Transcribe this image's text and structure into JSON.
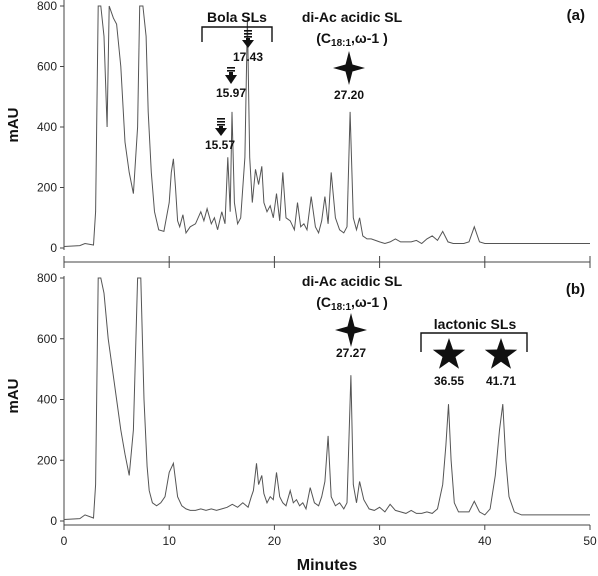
{
  "chart_data": [
    {
      "panel": "(a)",
      "type": "line",
      "xlabel": "",
      "ylabel": "mAU",
      "xlim": [
        0,
        50
      ],
      "ylim": [
        0,
        800
      ],
      "yticks": [
        0,
        200,
        400,
        600,
        800
      ],
      "xticks": [
        0,
        10,
        20,
        30,
        40,
        50
      ],
      "annotations": {
        "bracket_label": "Bola SLs",
        "group_label": "di-Ac acidic SL",
        "group_sub_pre": "(C",
        "group_sub_sub": "18:1",
        "group_sub_post": ",ω-1 )"
      },
      "peaks": [
        {
          "label": "15.57",
          "x": 15.57,
          "marker": "triple-arrow"
        },
        {
          "label": "15.97",
          "x": 15.97,
          "marker": "double-arrow"
        },
        {
          "label": "17.43",
          "x": 17.43,
          "marker": "triple-arrow"
        },
        {
          "label": "27.20",
          "x": 27.2,
          "marker": "four-point-star"
        }
      ],
      "series": [
        {
          "x": [
            0.0,
            1.5,
            2.0,
            2.8,
            3.0,
            3.25,
            3.5,
            3.8,
            4.1,
            4.3,
            4.5,
            4.7,
            5.0,
            5.4,
            5.8,
            6.2,
            6.6,
            7.0,
            7.2,
            7.5,
            7.8,
            8.0,
            8.3,
            8.6,
            9.0,
            9.5,
            10.0,
            10.2,
            10.4,
            10.6,
            10.8,
            11.0,
            11.3,
            11.6,
            12.0,
            12.5,
            13.0,
            13.3,
            13.6,
            14.0,
            14.3,
            14.6,
            15.0,
            15.3,
            15.57,
            15.8,
            15.97,
            16.2,
            16.5,
            16.8,
            17.0,
            17.2,
            17.43,
            17.65,
            17.9,
            18.2,
            18.5,
            18.8,
            19.0,
            19.3,
            19.6,
            19.9,
            20.2,
            20.5,
            20.8,
            21.1,
            21.5,
            21.9,
            22.2,
            22.5,
            22.8,
            23.1,
            23.5,
            23.9,
            24.2,
            24.5,
            24.8,
            25.1,
            25.4,
            25.8,
            26.2,
            26.6,
            26.9,
            27.2,
            27.5,
            27.8,
            28.1,
            28.4,
            28.8,
            29.2,
            29.6,
            30.0,
            30.5,
            31.0,
            31.5,
            32.0,
            32.5,
            33.0,
            33.5,
            34.0,
            34.5,
            35.0,
            35.5,
            36.0,
            36.5,
            37.0,
            37.5,
            38.0,
            38.5,
            39.0,
            39.5,
            40.0,
            40.5,
            41.0,
            41.5,
            42.0,
            43.0,
            44.0,
            45.0,
            46.0,
            47.0,
            48.0,
            49.0,
            50.0
          ],
          "y": [
            5,
            8,
            15,
            10,
            120,
            800,
            800,
            700,
            400,
            800,
            780,
            760,
            740,
            600,
            350,
            250,
            180,
            400,
            800,
            800,
            700,
            450,
            250,
            120,
            60,
            55,
            150,
            250,
            295,
            200,
            90,
            70,
            110,
            50,
            70,
            80,
            120,
            90,
            130,
            80,
            100,
            60,
            120,
            80,
            300,
            120,
            450,
            150,
            80,
            100,
            200,
            300,
            760,
            300,
            150,
            260,
            210,
            270,
            150,
            120,
            140,
            100,
            180,
            90,
            250,
            100,
            90,
            60,
            150,
            70,
            80,
            60,
            170,
            70,
            50,
            90,
            170,
            80,
            250,
            100,
            60,
            50,
            70,
            450,
            100,
            60,
            100,
            40,
            30,
            30,
            25,
            20,
            15,
            20,
            30,
            20,
            20,
            20,
            25,
            15,
            30,
            40,
            25,
            55,
            20,
            15,
            15,
            15,
            20,
            70,
            20,
            15,
            15,
            15,
            15,
            15,
            15,
            15,
            15,
            15,
            15,
            15,
            15,
            15
          ]
        }
      ]
    },
    {
      "panel": "(b)",
      "type": "line",
      "xlabel": "Minutes",
      "ylabel": "mAU",
      "xlim": [
        0,
        50
      ],
      "ylim": [
        0,
        800
      ],
      "yticks": [
        0,
        200,
        400,
        600,
        800
      ],
      "xticks": [
        0,
        10,
        20,
        30,
        40,
        50
      ],
      "annotations": {
        "group_label": "di-Ac acidic SL",
        "group_sub_pre": "(C",
        "group_sub_sub": "18:1",
        "group_sub_post": ",ω-1 )",
        "bracket_label": "lactonic SLs"
      },
      "peaks": [
        {
          "label": "27.27",
          "x": 27.27,
          "marker": "four-point-star"
        },
        {
          "label": "36.55",
          "x": 36.55,
          "marker": "five-point-star"
        },
        {
          "label": "41.71",
          "x": 41.71,
          "marker": "five-point-star"
        }
      ],
      "series": [
        {
          "x": [
            0.0,
            1.5,
            2.0,
            2.8,
            3.0,
            3.25,
            3.5,
            3.8,
            4.2,
            4.6,
            5.0,
            5.4,
            5.8,
            6.2,
            6.6,
            7.0,
            7.3,
            7.6,
            7.9,
            8.1,
            8.4,
            8.8,
            9.2,
            9.6,
            10.0,
            10.4,
            10.8,
            11.2,
            11.6,
            12.0,
            12.5,
            13.0,
            13.5,
            14.0,
            14.5,
            15.0,
            15.5,
            16.0,
            16.5,
            17.0,
            17.5,
            17.8,
            18.0,
            18.3,
            18.5,
            18.8,
            19.0,
            19.3,
            19.6,
            19.9,
            20.2,
            20.5,
            20.8,
            21.1,
            21.5,
            21.8,
            22.1,
            22.4,
            22.7,
            23.0,
            23.4,
            23.8,
            24.2,
            24.5,
            24.8,
            25.1,
            25.4,
            25.8,
            26.2,
            26.6,
            26.9,
            27.27,
            27.5,
            27.8,
            28.1,
            28.5,
            29.0,
            29.5,
            30.0,
            30.5,
            31.0,
            31.5,
            32.0,
            32.5,
            33.0,
            33.5,
            34.0,
            34.5,
            35.0,
            35.5,
            36.0,
            36.3,
            36.55,
            36.8,
            37.1,
            37.5,
            38.0,
            38.5,
            39.0,
            39.5,
            40.0,
            40.5,
            41.0,
            41.4,
            41.71,
            42.0,
            42.3,
            42.8,
            43.5,
            44.5,
            45.5,
            46.5,
            47.5,
            48.5,
            49.5,
            50.0
          ],
          "y": [
            5,
            8,
            20,
            10,
            120,
            800,
            800,
            750,
            600,
            500,
            400,
            300,
            220,
            150,
            300,
            800,
            800,
            400,
            180,
            100,
            60,
            50,
            60,
            80,
            160,
            190,
            80,
            50,
            40,
            35,
            35,
            40,
            35,
            40,
            35,
            40,
            45,
            55,
            45,
            60,
            45,
            80,
            100,
            190,
            120,
            150,
            90,
            60,
            80,
            70,
            160,
            80,
            60,
            50,
            100,
            60,
            70,
            50,
            60,
            40,
            110,
            60,
            50,
            80,
            130,
            280,
            80,
            50,
            60,
            40,
            60,
            480,
            120,
            60,
            130,
            70,
            40,
            35,
            45,
            30,
            55,
            35,
            30,
            25,
            35,
            25,
            25,
            30,
            25,
            40,
            120,
            250,
            385,
            200,
            60,
            30,
            30,
            30,
            65,
            30,
            20,
            40,
            150,
            300,
            385,
            200,
            80,
            30,
            20,
            20,
            20,
            20,
            20,
            20,
            20,
            20
          ]
        }
      ]
    }
  ]
}
